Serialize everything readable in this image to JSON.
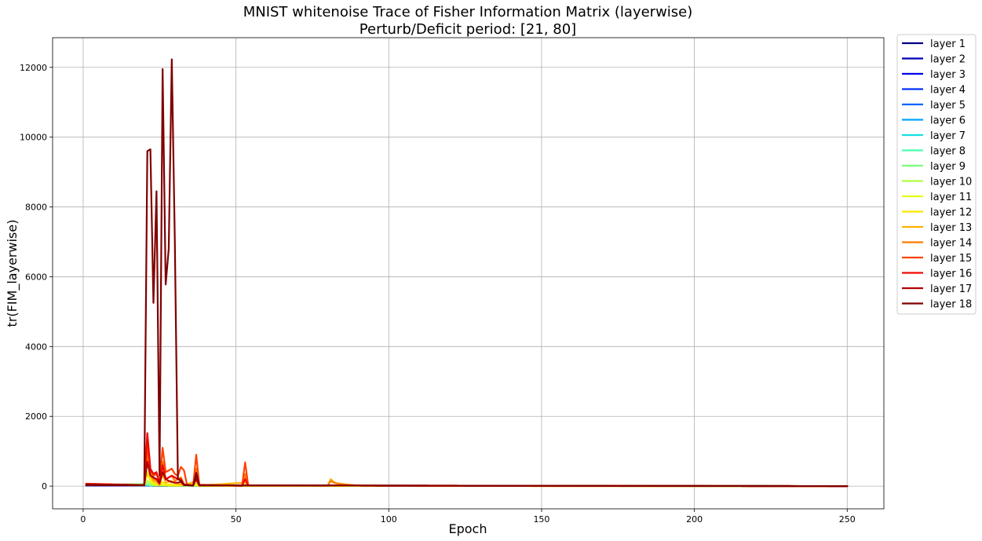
{
  "chart_data": {
    "type": "line",
    "title": "MNIST whitenoise Trace of Fisher Information Matrix (layerwise)",
    "subtitle": "Perturb/Deficit period: [21, 80]",
    "xlabel": "Epoch",
    "ylabel": "tr(FIM_layerwise)",
    "xlim": [
      -10,
      262
    ],
    "ylim": [
      -650,
      12850
    ],
    "xticks": [
      0,
      50,
      100,
      150,
      200,
      250
    ],
    "yticks": [
      0,
      2000,
      4000,
      6000,
      8000,
      10000,
      12000
    ],
    "grid": true,
    "legend_position": "outside-right-top",
    "x_range": [
      1,
      250
    ],
    "series": [
      {
        "name": "layer 1",
        "color": "#00007f",
        "points": [
          [
            1,
            15
          ],
          [
            21,
            15
          ],
          [
            23,
            10
          ],
          [
            250,
            0
          ]
        ]
      },
      {
        "name": "layer 2",
        "color": "#0000b2",
        "points": [
          [
            1,
            20
          ],
          [
            21,
            20
          ],
          [
            23,
            12
          ],
          [
            250,
            0
          ]
        ]
      },
      {
        "name": "layer 3",
        "color": "#0000f1",
        "points": [
          [
            1,
            25
          ],
          [
            21,
            22
          ],
          [
            23,
            14
          ],
          [
            250,
            0
          ]
        ]
      },
      {
        "name": "layer 4",
        "color": "#0030ff",
        "points": [
          [
            1,
            30
          ],
          [
            21,
            25
          ],
          [
            23,
            15
          ],
          [
            250,
            0
          ]
        ]
      },
      {
        "name": "layer 5",
        "color": "#0064ff",
        "points": [
          [
            1,
            30
          ],
          [
            21,
            25
          ],
          [
            23,
            15
          ],
          [
            250,
            0
          ]
        ]
      },
      {
        "name": "layer 6",
        "color": "#00a4ff",
        "points": [
          [
            1,
            35
          ],
          [
            21,
            30
          ],
          [
            23,
            18
          ],
          [
            250,
            0
          ]
        ]
      },
      {
        "name": "layer 7",
        "color": "#15e0e2",
        "points": [
          [
            1,
            35
          ],
          [
            21,
            30
          ],
          [
            23,
            18
          ],
          [
            250,
            0
          ]
        ]
      },
      {
        "name": "layer 8",
        "color": "#49ffad",
        "points": [
          [
            1,
            40
          ],
          [
            21,
            40
          ],
          [
            22,
            20
          ],
          [
            250,
            0
          ]
        ]
      },
      {
        "name": "layer 9",
        "color": "#7cff79",
        "points": [
          [
            1,
            40
          ],
          [
            21,
            60
          ],
          [
            22,
            30
          ],
          [
            23,
            15
          ],
          [
            250,
            0
          ]
        ]
      },
      {
        "name": "layer 10",
        "color": "#b0ff46",
        "points": [
          [
            1,
            40
          ],
          [
            20,
            30
          ],
          [
            21,
            150
          ],
          [
            22,
            80
          ],
          [
            23,
            30
          ],
          [
            26,
            20
          ],
          [
            28,
            10
          ],
          [
            250,
            0
          ]
        ]
      },
      {
        "name": "layer 11",
        "color": "#e4ff12",
        "points": [
          [
            1,
            40
          ],
          [
            20,
            30
          ],
          [
            21,
            350
          ],
          [
            22,
            150
          ],
          [
            23,
            60
          ],
          [
            26,
            40
          ],
          [
            28,
            20
          ],
          [
            37,
            30
          ],
          [
            38,
            5
          ],
          [
            250,
            0
          ]
        ]
      },
      {
        "name": "layer 12",
        "color": "#ffe600",
        "points": [
          [
            1,
            40
          ],
          [
            20,
            30
          ],
          [
            21,
            400
          ],
          [
            22,
            200
          ],
          [
            23,
            100
          ],
          [
            24,
            60
          ],
          [
            25,
            20
          ],
          [
            26,
            120
          ],
          [
            27,
            50
          ],
          [
            28,
            40
          ],
          [
            29,
            60
          ],
          [
            30,
            20
          ],
          [
            37,
            60
          ],
          [
            38,
            10
          ],
          [
            250,
            0
          ]
        ]
      },
      {
        "name": "layer 13",
        "color": "#ffb000",
        "points": [
          [
            1,
            50
          ],
          [
            20,
            30
          ],
          [
            21,
            700
          ],
          [
            22,
            300
          ],
          [
            23,
            150
          ],
          [
            24,
            120
          ],
          [
            25,
            30
          ],
          [
            26,
            350
          ],
          [
            27,
            100
          ],
          [
            28,
            120
          ],
          [
            29,
            150
          ],
          [
            30,
            80
          ],
          [
            32,
            50
          ],
          [
            33,
            20
          ],
          [
            37,
            150
          ],
          [
            38,
            20
          ],
          [
            53,
            100
          ],
          [
            54,
            10
          ],
          [
            80,
            10
          ],
          [
            81,
            200
          ],
          [
            82,
            120
          ],
          [
            83,
            80
          ],
          [
            85,
            60
          ],
          [
            87,
            40
          ],
          [
            89,
            20
          ],
          [
            92,
            5
          ],
          [
            250,
            0
          ]
        ]
      },
      {
        "name": "layer 14",
        "color": "#ff7a00",
        "points": [
          [
            1,
            60
          ],
          [
            20,
            30
          ],
          [
            21,
            900
          ],
          [
            22,
            350
          ],
          [
            23,
            200
          ],
          [
            24,
            180
          ],
          [
            25,
            50
          ],
          [
            26,
            700
          ],
          [
            27,
            200
          ],
          [
            28,
            250
          ],
          [
            29,
            300
          ],
          [
            30,
            150
          ],
          [
            31,
            200
          ],
          [
            32,
            250
          ],
          [
            33,
            50
          ],
          [
            36,
            20
          ],
          [
            37,
            500
          ],
          [
            38,
            30
          ],
          [
            52,
            10
          ],
          [
            53,
            350
          ],
          [
            54,
            20
          ],
          [
            80,
            10
          ],
          [
            81,
            150
          ],
          [
            82,
            100
          ],
          [
            84,
            60
          ],
          [
            88,
            30
          ],
          [
            92,
            5
          ],
          [
            250,
            0
          ]
        ]
      },
      {
        "name": "layer 15",
        "color": "#ff4300",
        "points": [
          [
            1,
            70
          ],
          [
            20,
            30
          ],
          [
            21,
            1200
          ],
          [
            22,
            450
          ],
          [
            23,
            300
          ],
          [
            24,
            350
          ],
          [
            25,
            100
          ],
          [
            26,
            1100
          ],
          [
            27,
            400
          ],
          [
            28,
            450
          ],
          [
            29,
            500
          ],
          [
            30,
            350
          ],
          [
            31,
            300
          ],
          [
            32,
            550
          ],
          [
            33,
            450
          ],
          [
            34,
            30
          ],
          [
            36,
            20
          ],
          [
            37,
            900
          ],
          [
            38,
            40
          ],
          [
            52,
            10
          ],
          [
            53,
            680
          ],
          [
            54,
            20
          ],
          [
            250,
            0
          ]
        ]
      },
      {
        "name": "layer 16",
        "color": "#f10800",
        "points": [
          [
            1,
            60
          ],
          [
            20,
            30
          ],
          [
            21,
            1520
          ],
          [
            22,
            500
          ],
          [
            23,
            350
          ],
          [
            24,
            400
          ],
          [
            25,
            100
          ],
          [
            26,
            600
          ],
          [
            27,
            200
          ],
          [
            28,
            250
          ],
          [
            29,
            300
          ],
          [
            30,
            250
          ],
          [
            31,
            200
          ],
          [
            32,
            200
          ],
          [
            33,
            50
          ],
          [
            36,
            20
          ],
          [
            37,
            300
          ],
          [
            38,
            30
          ],
          [
            52,
            10
          ],
          [
            53,
            200
          ],
          [
            54,
            20
          ],
          [
            250,
            0
          ]
        ]
      },
      {
        "name": "layer 17",
        "color": "#b20000",
        "points": [
          [
            1,
            50
          ],
          [
            20,
            30
          ],
          [
            21,
            700
          ],
          [
            22,
            300
          ],
          [
            23,
            250
          ],
          [
            24,
            200
          ],
          [
            25,
            80
          ],
          [
            26,
            400
          ],
          [
            27,
            200
          ],
          [
            28,
            150
          ],
          [
            29,
            120
          ],
          [
            30,
            100
          ],
          [
            31,
            100
          ],
          [
            32,
            120
          ],
          [
            33,
            30
          ],
          [
            36,
            20
          ],
          [
            37,
            200
          ],
          [
            38,
            20
          ],
          [
            250,
            0
          ]
        ]
      },
      {
        "name": "layer 18",
        "color": "#7f0000",
        "points": [
          [
            1,
            30
          ],
          [
            20,
            20
          ],
          [
            21,
            9600
          ],
          [
            22,
            9650
          ],
          [
            23,
            5250
          ],
          [
            24,
            8450
          ],
          [
            25,
            300
          ],
          [
            26,
            11950
          ],
          [
            27,
            5780
          ],
          [
            28,
            6800
          ],
          [
            29,
            12230
          ],
          [
            30,
            7000
          ],
          [
            31,
            200
          ],
          [
            32,
            150
          ],
          [
            33,
            30
          ],
          [
            36,
            20
          ],
          [
            37,
            380
          ],
          [
            38,
            20
          ],
          [
            250,
            0
          ]
        ]
      }
    ]
  }
}
